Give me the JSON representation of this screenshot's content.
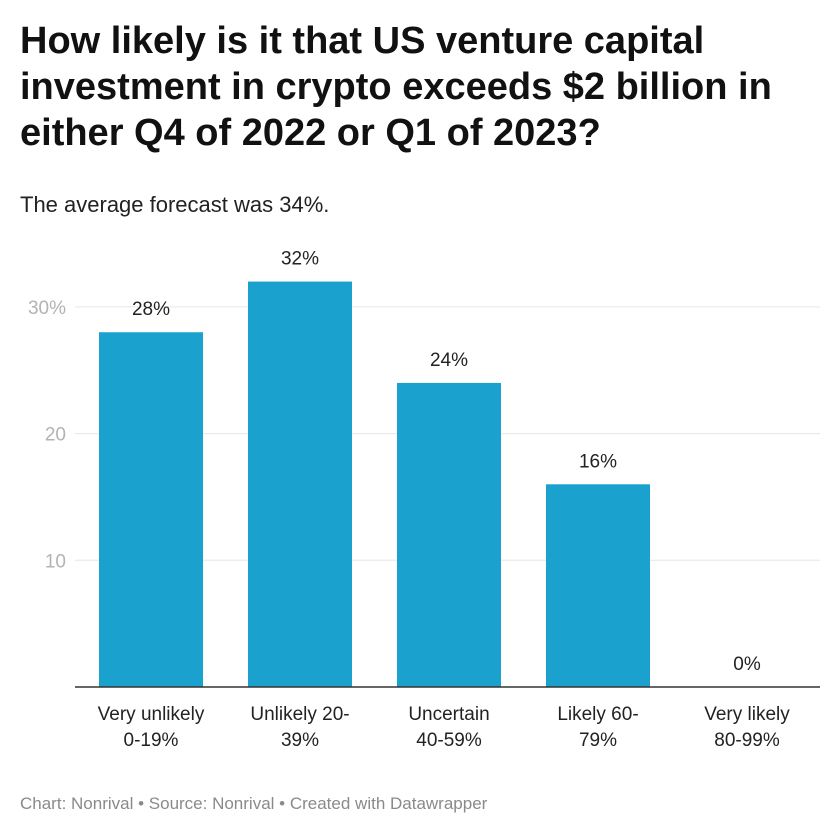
{
  "title": "How likely is it that US venture capital investment in crypto exceeds $2 billion in either Q4 of 2022 or Q1 of 2023?",
  "subtitle": "The average forecast was 34%.",
  "footer": "Chart: Nonrival • Source: Nonrival • Created with Datawrapper",
  "colors": {
    "bar": "#1ba1cd",
    "grid": "#e6e6e6",
    "axis": "#333333"
  },
  "chart_data": {
    "type": "bar",
    "categories": [
      [
        "Very unlikely",
        "0-19%"
      ],
      [
        "Unlikely 20-",
        "39%"
      ],
      [
        "Uncertain",
        "40-59%"
      ],
      [
        "Likely 60-",
        "79%"
      ],
      [
        "Very likely",
        "80-99%"
      ]
    ],
    "values": [
      28,
      32,
      24,
      16,
      0
    ],
    "value_labels": [
      "28%",
      "32%",
      "24%",
      "16%",
      "0%"
    ],
    "yticks": [
      10,
      20,
      30
    ],
    "ytick_labels": [
      "10",
      "20",
      "30%"
    ],
    "ylim": [
      0,
      34
    ],
    "grid": true
  }
}
